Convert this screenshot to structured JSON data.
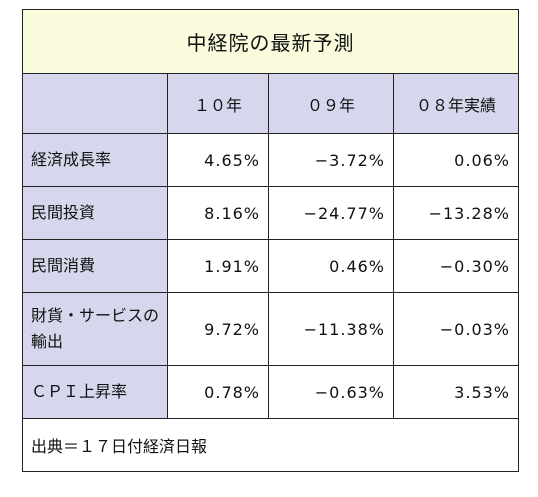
{
  "title": "中経院の最新予測",
  "headers": [
    "",
    "１０年",
    "０９年",
    "０８年実績"
  ],
  "rows": [
    {
      "label": "経済成長率",
      "values": [
        "4.65%",
        "−3.72%",
        "0.06%"
      ]
    },
    {
      "label": "民間投資",
      "values": [
        "8.16%",
        "−24.77%",
        "−13.28%"
      ]
    },
    {
      "label": "民間消費",
      "values": [
        "1.91%",
        "0.46%",
        "−0.30%"
      ]
    },
    {
      "label": "財貨・サービスの輸出",
      "values": [
        "9.72%",
        "−11.38%",
        "−0.03%"
      ]
    },
    {
      "label": "ＣＰＩ上昇率",
      "values": [
        "0.78%",
        "−0.63%",
        "3.53%"
      ]
    }
  ],
  "source": "出典＝１７日付経済日報"
}
